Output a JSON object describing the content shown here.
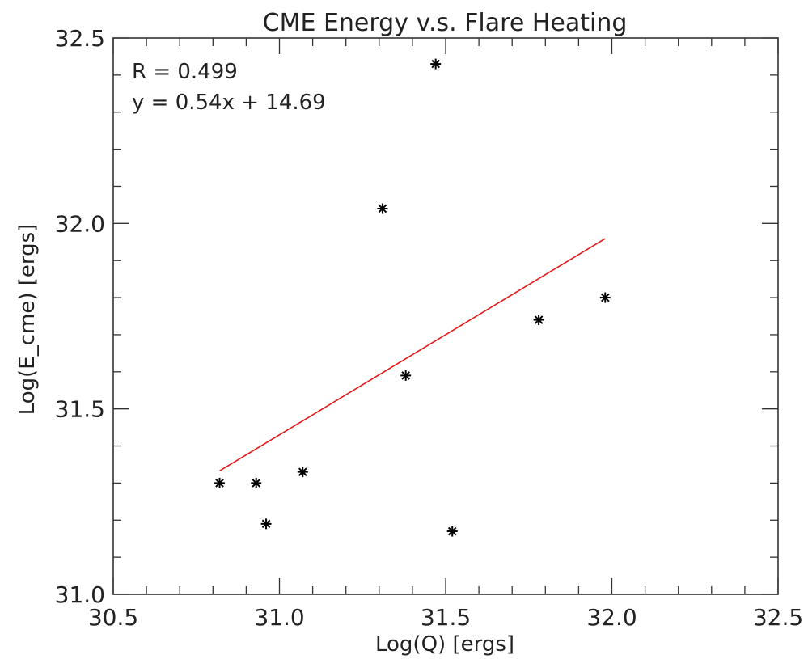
{
  "chart_data": {
    "type": "scatter",
    "title": "CME Energy v.s. Flare Heating",
    "xlabel": "Log(Q) [ergs]",
    "ylabel": "Log(E_cme) [ergs]",
    "xlim": [
      30.5,
      32.5
    ],
    "ylim": [
      31.0,
      32.5
    ],
    "x_ticks": [
      30.5,
      31.0,
      31.5,
      32.0,
      32.5
    ],
    "x_tick_labels": [
      "30.5",
      "31.0",
      "31.5",
      "32.0",
      "32.5"
    ],
    "y_ticks": [
      31.0,
      31.5,
      32.0,
      32.5
    ],
    "y_tick_labels": [
      "31.0",
      "31.5",
      "32.0",
      "32.5"
    ],
    "x_minor_step": 0.1,
    "y_minor_step": 0.1,
    "grid": false,
    "legend": "none",
    "annotations": [
      "R = 0.499",
      "y = 0.54x + 14.69"
    ],
    "series": [
      {
        "marker": "asterisk",
        "color": "#000000",
        "points": [
          {
            "x": 30.82,
            "y": 31.3
          },
          {
            "x": 30.93,
            "y": 31.3
          },
          {
            "x": 30.96,
            "y": 31.19
          },
          {
            "x": 31.07,
            "y": 31.33
          },
          {
            "x": 31.31,
            "y": 32.04
          },
          {
            "x": 31.38,
            "y": 31.59
          },
          {
            "x": 31.47,
            "y": 32.43
          },
          {
            "x": 31.52,
            "y": 31.17
          },
          {
            "x": 31.78,
            "y": 31.74
          },
          {
            "x": 31.98,
            "y": 31.8
          }
        ]
      }
    ],
    "fit_line": {
      "slope": 0.54,
      "intercept": 14.69,
      "x_range": [
        30.82,
        31.98
      ],
      "color": "#e31a1c"
    }
  }
}
